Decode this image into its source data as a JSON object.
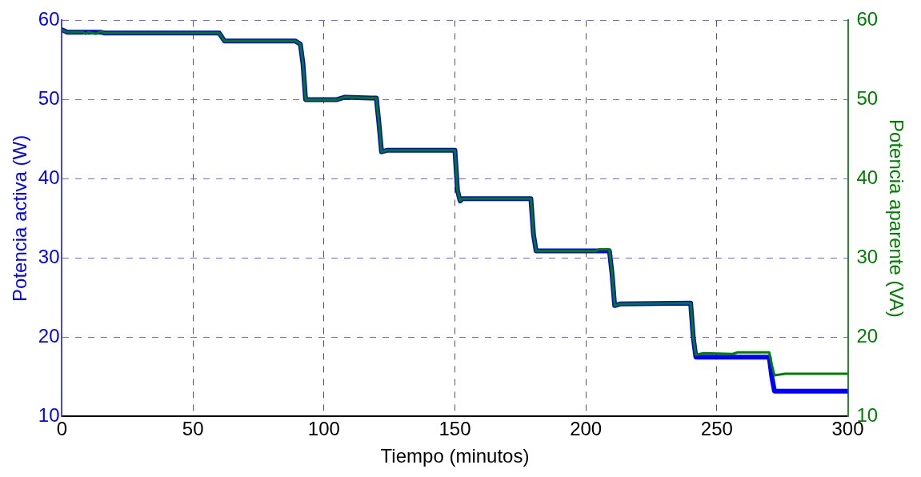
{
  "chart_data": {
    "type": "line",
    "xlabel": "Tiempo (minutos)",
    "ylabel": "Potencia activa (W)",
    "y2label": "Potencia aparente (VA)",
    "xlim": [
      0,
      300
    ],
    "xticks": [
      0,
      50,
      100,
      150,
      200,
      250,
      300
    ],
    "ylim": [
      10,
      60
    ],
    "yticks": [
      10,
      20,
      30,
      40,
      50,
      60
    ],
    "y2lim": [
      10,
      60
    ],
    "y2ticks": [
      10,
      20,
      30,
      40,
      50,
      60
    ],
    "grid": true,
    "legend": false,
    "marker": "none",
    "line_style": "solid",
    "series": [
      {
        "color": "#0000ff",
        "axis": "y",
        "x": [
          0,
          2,
          15,
          16,
          60,
          62,
          89,
          91,
          92,
          93,
          105,
          108,
          118,
          120,
          121,
          122,
          124,
          150,
          151,
          152,
          153,
          179,
          180,
          181,
          209,
          210,
          211,
          213,
          240,
          241,
          242,
          270,
          271,
          272,
          300
        ],
        "values": [
          58.8,
          58.5,
          58.5,
          58.4,
          58.4,
          57.4,
          57.4,
          57.0,
          54.5,
          50.0,
          50.0,
          50.3,
          50.2,
          50.2,
          47,
          43.4,
          43.6,
          43.6,
          38.5,
          37.2,
          37.5,
          37.5,
          33,
          30.9,
          30.9,
          28,
          24.0,
          24.2,
          24.3,
          20,
          17.5,
          17.5,
          15,
          13.2,
          13.2
        ]
      },
      {
        "color": "#008000",
        "axis": "y2",
        "x": [
          0,
          2,
          8,
          9,
          10,
          13,
          15,
          16,
          60,
          62,
          89,
          91,
          92,
          93,
          105,
          108,
          118,
          120,
          121,
          122,
          124,
          150,
          151,
          152,
          153,
          179,
          180,
          181,
          204,
          205,
          209,
          210,
          211,
          213,
          240,
          241,
          242,
          245,
          256,
          258,
          270,
          271,
          272,
          276,
          300
        ],
        "values": [
          58.8,
          58.5,
          58.5,
          58.3,
          58.5,
          58.3,
          58.6,
          58.4,
          58.4,
          57.4,
          57.4,
          57.0,
          54.5,
          50.0,
          50.0,
          50.3,
          50.2,
          50.2,
          47,
          43.4,
          43.6,
          43.6,
          38.5,
          37.2,
          37.5,
          37.5,
          33,
          30.9,
          30.9,
          31.1,
          31.1,
          28,
          24.0,
          24.2,
          24.3,
          20,
          17.8,
          18.0,
          17.9,
          18.1,
          18.1,
          16.5,
          15.2,
          15.4,
          15.4
        ]
      }
    ]
  }
}
